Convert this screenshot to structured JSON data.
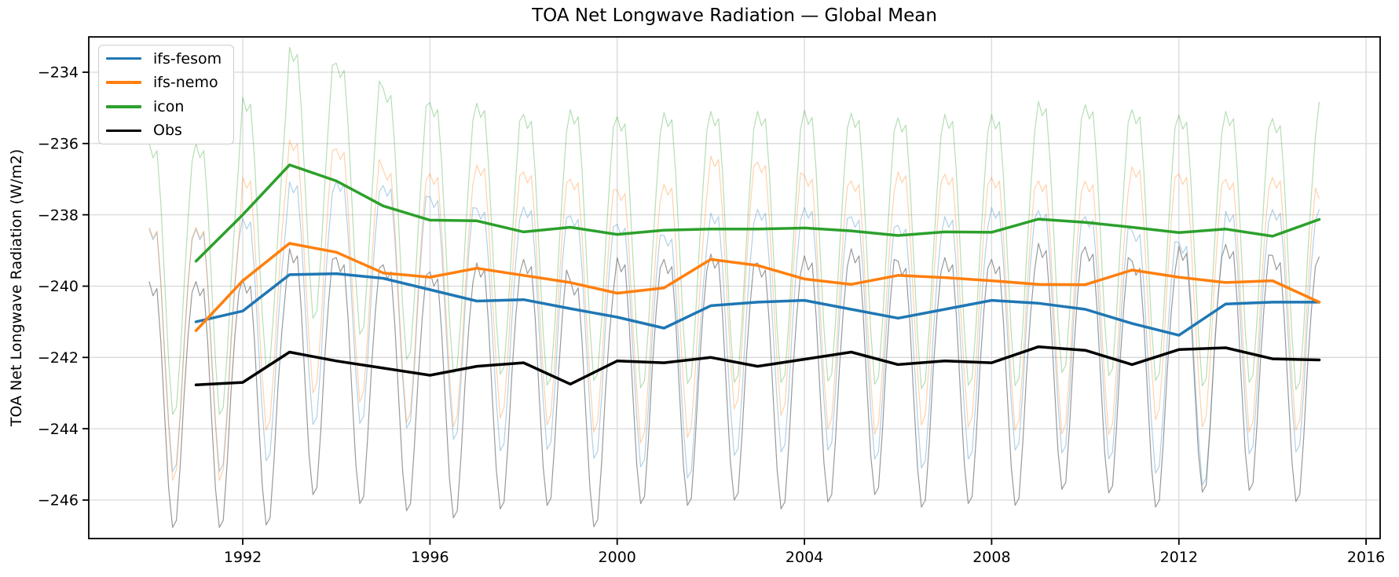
{
  "chart_data": {
    "type": "line",
    "title": "TOA Net Longwave Radiation — Global Mean",
    "xlabel": "",
    "ylabel": "TOA Net Longwave Radiation (W/m2)",
    "xlim": [
      1988.71,
      2016.3
    ],
    "ylim": [
      -247.08,
      -233.01
    ],
    "xticks": [
      1992,
      1996,
      2000,
      2004,
      2008,
      2012,
      2016
    ],
    "yticks": [
      -234,
      -236,
      -238,
      -240,
      -242,
      -244,
      -246
    ],
    "grid": true,
    "legend_position": "upper-left",
    "annual_years_start": 1991,
    "annual_years_end": 2015,
    "monthly_start": "1990-01",
    "monthly_end": "2015-01",
    "monthly_rule": "thin line value = annual_mean of that year + seasonal_anomaly of month",
    "series": [
      {
        "name": "ifs-fesom",
        "color": "#1f77b4",
        "thin_color": "#1f77b4",
        "thin_opacity": 0.35,
        "annual_mean": [
          -241.0,
          -240.7,
          -239.68,
          -239.65,
          -239.78,
          -240.1,
          -240.42,
          -240.38,
          -240.63,
          -240.87,
          -241.18,
          -240.55,
          -240.45,
          -240.4,
          -240.65,
          -240.9,
          -240.65,
          -240.4,
          -240.48,
          -240.65,
          -241.05,
          -241.38,
          -240.5,
          -240.45,
          -240.45
        ],
        "seasonal_anomaly": [
          2.6,
          2.3,
          2.5,
          1.1,
          -0.9,
          -2.8,
          -4.2,
          -4.0,
          -2.5,
          -0.5,
          1.1,
          2.3
        ]
      },
      {
        "name": "ifs-nemo",
        "color": "#ff7f0e",
        "thin_color": "#ff7f0e",
        "thin_opacity": 0.35,
        "annual_mean": [
          -241.25,
          -239.85,
          -238.8,
          -239.05,
          -239.63,
          -239.75,
          -239.5,
          -239.7,
          -239.9,
          -240.2,
          -240.05,
          -239.25,
          -239.42,
          -239.8,
          -239.95,
          -239.7,
          -239.76,
          -239.85,
          -239.95,
          -239.96,
          -239.55,
          -239.75,
          -239.9,
          -239.85,
          -240.45
        ],
        "seasonal_anomaly": [
          2.9,
          2.6,
          2.8,
          1.3,
          -0.8,
          -2.7,
          -4.2,
          -3.9,
          -2.4,
          -0.4,
          1.3,
          2.6
        ]
      },
      {
        "name": "icon",
        "color": "#2ca02c",
        "thin_color": "#2ca02c",
        "thin_opacity": 0.35,
        "annual_mean": [
          -239.3,
          -238.0,
          -236.6,
          -237.05,
          -237.75,
          -238.15,
          -238.17,
          -238.48,
          -238.35,
          -238.55,
          -238.43,
          -238.4,
          -238.4,
          -238.37,
          -238.45,
          -238.58,
          -238.48,
          -238.49,
          -238.12,
          -238.21,
          -238.35,
          -238.5,
          -238.4,
          -238.6,
          -238.13
        ],
        "seasonal_anomaly": [
          3.3,
          2.9,
          3.1,
          1.6,
          -0.6,
          -2.8,
          -4.3,
          -4.1,
          -2.6,
          -0.6,
          1.2,
          2.8
        ]
      },
      {
        "name": "Obs",
        "color": "#000000",
        "thin_color": "#808080",
        "thin_opacity": 0.8,
        "annual_mean": [
          -242.77,
          -242.7,
          -241.85,
          -242.1,
          -242.3,
          -242.5,
          -242.25,
          -242.15,
          -242.75,
          -242.1,
          -242.15,
          -242.0,
          -242.25,
          -242.05,
          -241.85,
          -242.2,
          -242.1,
          -242.15,
          -241.7,
          -241.8,
          -242.2,
          -241.78,
          -241.73,
          -242.04,
          -242.07
        ],
        "seasonal_anomaly": [
          2.9,
          2.5,
          2.7,
          1.2,
          -0.9,
          -2.9,
          -4.0,
          -3.8,
          -2.2,
          -0.2,
          1.4,
          2.6
        ]
      }
    ],
    "colors": {
      "grid": "#d9d9d9",
      "spine": "#000000",
      "tick_label": "#000000"
    }
  }
}
